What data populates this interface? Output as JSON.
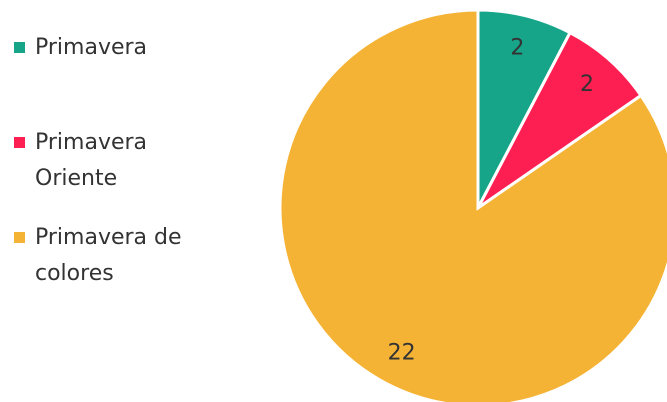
{
  "chart_data": {
    "type": "pie",
    "categories": [
      "Primavera",
      "Primavera Oriente",
      "Primavera de colores"
    ],
    "values": [
      2,
      2,
      22
    ],
    "colors": [
      "#17a589",
      "#fd1f52",
      "#f5b335"
    ],
    "legend": "left"
  }
}
